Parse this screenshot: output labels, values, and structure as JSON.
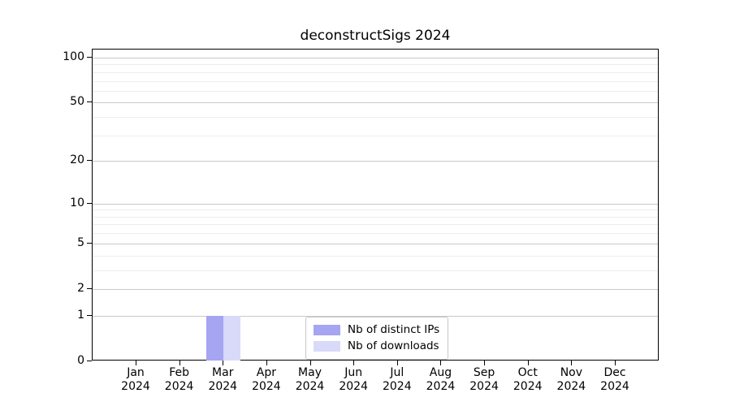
{
  "title": "deconstructSigs 2024",
  "chart_data": {
    "type": "bar",
    "title": "deconstructSigs 2024",
    "categories": [
      "Jan",
      "Feb",
      "Mar",
      "Apr",
      "May",
      "Jun",
      "Jul",
      "Aug",
      "Sep",
      "Oct",
      "Nov",
      "Dec"
    ],
    "x_year": "2024",
    "series": [
      {
        "name": "Nb of distinct IPs",
        "color": "#a5a5f2",
        "values": [
          0,
          0,
          1,
          0,
          0,
          0,
          0,
          0,
          0,
          0,
          0,
          0
        ]
      },
      {
        "name": "Nb of downloads",
        "color": "#d9d9f9",
        "values": [
          0,
          0,
          1,
          0,
          0,
          0,
          0,
          0,
          0,
          0,
          0,
          0
        ]
      }
    ],
    "y_axis": {
      "scale": "log1p",
      "max": 100,
      "major_ticks": [
        0,
        1,
        2,
        5,
        10,
        20,
        50,
        100
      ],
      "minor_gridlines": [
        3,
        4,
        6,
        7,
        8,
        9,
        30,
        40,
        60,
        70,
        80,
        90
      ]
    },
    "xlabel": "",
    "ylabel": "",
    "grid": true,
    "legend_position": "lower center"
  }
}
